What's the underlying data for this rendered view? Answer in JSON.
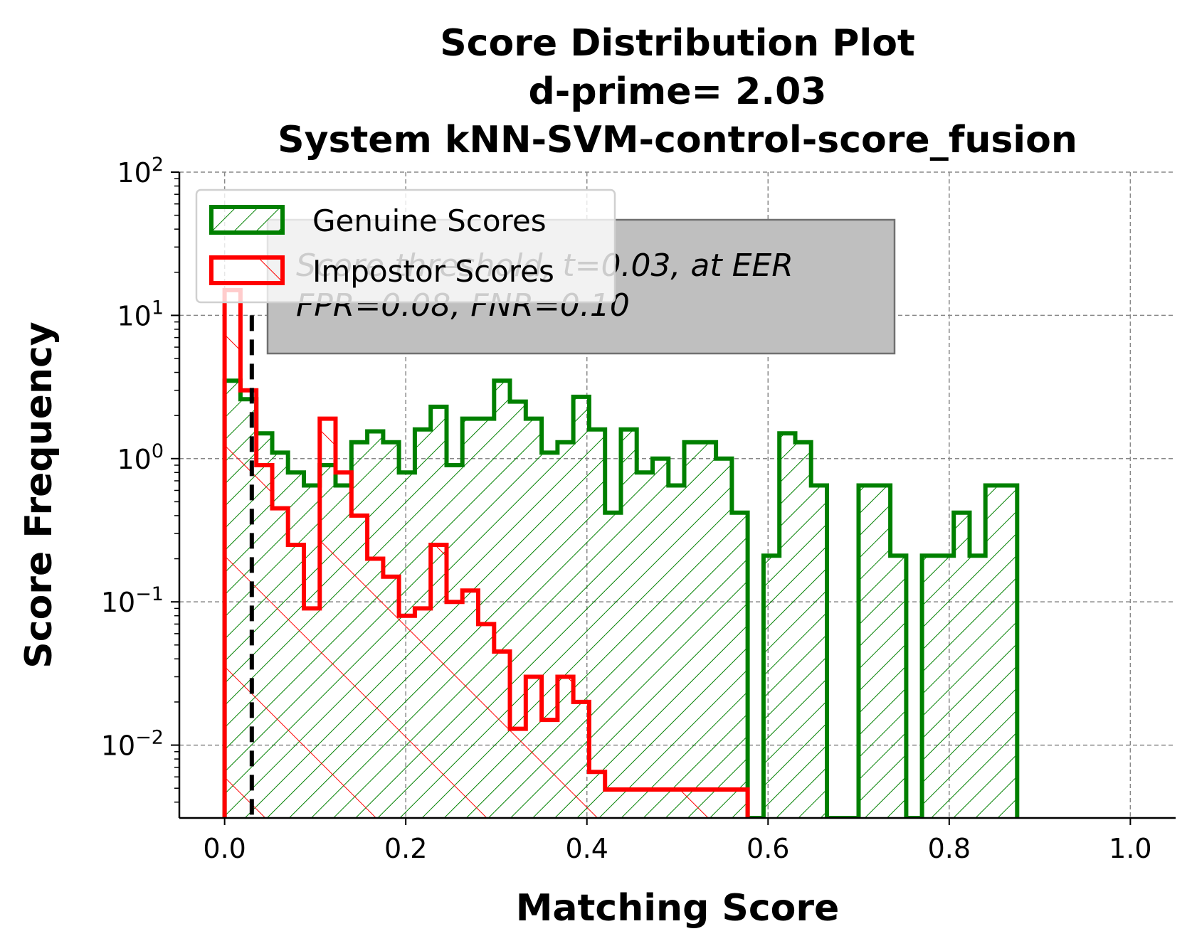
{
  "chart_data": {
    "type": "histogram",
    "title_lines": [
      "Score Distribution Plot",
      "d-prime= 2.03",
      "System kNN-SVM-control-score_fusion"
    ],
    "xlabel": "Matching Score",
    "ylabel": "Score Frequency",
    "xlim": [
      -0.05,
      1.05
    ],
    "ylim": [
      0.0031,
      100
    ],
    "yscale": "log",
    "grid": true,
    "xticks": [
      {
        "value": 0.0,
        "label": "0.0"
      },
      {
        "value": 0.2,
        "label": "0.2"
      },
      {
        "value": 0.4,
        "label": "0.4"
      },
      {
        "value": 0.6,
        "label": "0.6"
      },
      {
        "value": 0.8,
        "label": "0.8"
      },
      {
        "value": 1.0,
        "label": "1.0"
      }
    ],
    "yticks": [
      {
        "value": 100,
        "base": "10",
        "exp": "2"
      },
      {
        "value": 10,
        "base": "10",
        "exp": "1"
      },
      {
        "value": 1,
        "base": "10",
        "exp": "0"
      },
      {
        "value": 0.1,
        "base": "10",
        "exp": "−1"
      },
      {
        "value": 0.01,
        "base": "10",
        "exp": "−2"
      }
    ],
    "threshold": 0.03,
    "annotation": {
      "line1": "Score threshold, t=0.03, at EER",
      "line2": "FPR=0.08, FNR=0.10"
    },
    "legend": {
      "position": "upper left",
      "entries": [
        {
          "label": "Genuine Scores",
          "color": "#008000",
          "hatch": "forward"
        },
        {
          "label": "Impostor Scores",
          "color": "#ff0000",
          "hatch": "backward"
        }
      ]
    },
    "bin_width": 0.0175,
    "series": [
      {
        "name": "Genuine Scores",
        "color": "#008000",
        "bins": [
          [
            0.0,
            3.5
          ],
          [
            0.0175,
            2.6
          ],
          [
            0.035,
            1.5
          ],
          [
            0.0525,
            1.1
          ],
          [
            0.07,
            0.8
          ],
          [
            0.0875,
            0.65
          ],
          [
            0.105,
            0.9
          ],
          [
            0.1225,
            0.65
          ],
          [
            0.14,
            1.3
          ],
          [
            0.1575,
            1.55
          ],
          [
            0.175,
            1.3
          ],
          [
            0.1925,
            0.8
          ],
          [
            0.21,
            1.6
          ],
          [
            0.2275,
            2.3
          ],
          [
            0.245,
            0.9
          ],
          [
            0.2625,
            1.9
          ],
          [
            0.28,
            1.9
          ],
          [
            0.2975,
            3.5
          ],
          [
            0.315,
            2.5
          ],
          [
            0.3325,
            1.9
          ],
          [
            0.35,
            1.1
          ],
          [
            0.3675,
            1.3
          ],
          [
            0.385,
            2.7
          ],
          [
            0.4025,
            1.6
          ],
          [
            0.42,
            0.42
          ],
          [
            0.4375,
            1.6
          ],
          [
            0.455,
            0.8
          ],
          [
            0.4725,
            1.0
          ],
          [
            0.49,
            0.65
          ],
          [
            0.5075,
            1.3
          ],
          [
            0.525,
            1.3
          ],
          [
            0.5425,
            1.0
          ],
          [
            0.56,
            0.42
          ],
          [
            0.5775,
            0.0031
          ],
          [
            0.595,
            0.21
          ],
          [
            0.6125,
            1.5
          ],
          [
            0.63,
            1.3
          ],
          [
            0.6475,
            0.65
          ],
          [
            0.665,
            0.0031
          ],
          [
            0.6825,
            0.0031
          ],
          [
            0.7,
            0.65
          ],
          [
            0.7175,
            0.65
          ],
          [
            0.735,
            0.21
          ],
          [
            0.7525,
            0.0031
          ],
          [
            0.77,
            0.21
          ],
          [
            0.7875,
            0.21
          ],
          [
            0.805,
            0.42
          ],
          [
            0.8225,
            0.21
          ],
          [
            0.84,
            0.65
          ],
          [
            0.8575,
            0.65
          ]
        ]
      },
      {
        "name": "Impostor Scores",
        "color": "#ff0000",
        "bins": [
          [
            0.0,
            15
          ],
          [
            0.0175,
            3.0
          ],
          [
            0.035,
            0.9
          ],
          [
            0.0525,
            0.45
          ],
          [
            0.07,
            0.25
          ],
          [
            0.0875,
            0.09
          ],
          [
            0.105,
            1.9
          ],
          [
            0.1225,
            0.8
          ],
          [
            0.14,
            0.4
          ],
          [
            0.1575,
            0.2
          ],
          [
            0.175,
            0.15
          ],
          [
            0.1925,
            0.08
          ],
          [
            0.21,
            0.09
          ],
          [
            0.2275,
            0.25
          ],
          [
            0.245,
            0.1
          ],
          [
            0.2625,
            0.12
          ],
          [
            0.28,
            0.07
          ],
          [
            0.2975,
            0.045
          ],
          [
            0.315,
            0.013
          ],
          [
            0.3325,
            0.03
          ],
          [
            0.35,
            0.015
          ],
          [
            0.3675,
            0.03
          ],
          [
            0.385,
            0.02
          ],
          [
            0.4025,
            0.0065
          ],
          [
            0.42,
            0.0049
          ],
          [
            0.4375,
            0.0049
          ],
          [
            0.455,
            0.0049
          ],
          [
            0.4725,
            0.0049
          ],
          [
            0.49,
            0.0049
          ],
          [
            0.5075,
            0.0049
          ],
          [
            0.525,
            0.0049
          ],
          [
            0.5425,
            0.0049
          ],
          [
            0.56,
            0.0049
          ]
        ]
      }
    ]
  }
}
